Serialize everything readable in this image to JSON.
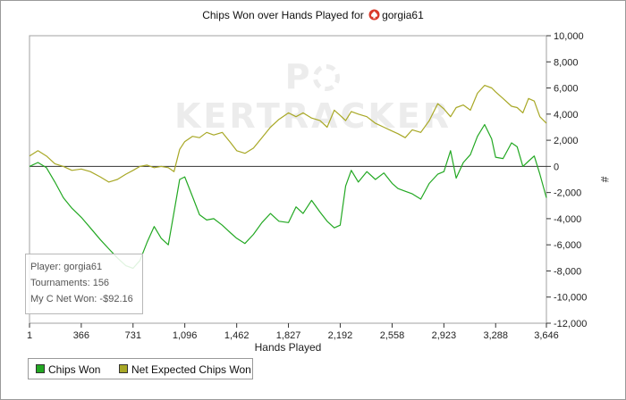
{
  "chart_data": {
    "type": "line",
    "title": "Chips Won over Hands Played for",
    "title_player": "gorgia61",
    "xlabel": "Hands Played",
    "ylabel": "#",
    "xlim": [
      1,
      3646
    ],
    "ylim": [
      -12000,
      10000
    ],
    "x_ticks": [
      1,
      366,
      731,
      1096,
      1462,
      1827,
      2192,
      2558,
      2923,
      3288,
      3646
    ],
    "y_ticks": [
      10000,
      8000,
      6000,
      4000,
      2000,
      0,
      -2000,
      -4000,
      -6000,
      -8000,
      -10000,
      -12000
    ],
    "x_tick_labels": [
      "1",
      "366",
      "731",
      "1,096",
      "1,462",
      "1,827",
      "2,192",
      "2,558",
      "2,923",
      "3,288",
      "3,646"
    ],
    "y_tick_labels": [
      "10,000",
      "8,000",
      "6,000",
      "4,000",
      "2,000",
      "0",
      "-2,000",
      "-4,000",
      "-6,000",
      "-8,000",
      "-10,000",
      "-12,000"
    ],
    "grid": false,
    "legend_position": "bottom-left",
    "series": [
      {
        "name": "Chips Won",
        "color": "#22a822",
        "points": [
          [
            1,
            0
          ],
          [
            60,
            300
          ],
          [
            120,
            -100
          ],
          [
            180,
            -1200
          ],
          [
            240,
            -2400
          ],
          [
            300,
            -3200
          ],
          [
            366,
            -3900
          ],
          [
            430,
            -4700
          ],
          [
            500,
            -5600
          ],
          [
            560,
            -6300
          ],
          [
            620,
            -7000
          ],
          [
            680,
            -7600
          ],
          [
            731,
            -7800
          ],
          [
            780,
            -7200
          ],
          [
            830,
            -5800
          ],
          [
            880,
            -4600
          ],
          [
            930,
            -5500
          ],
          [
            980,
            -6000
          ],
          [
            1020,
            -3500
          ],
          [
            1060,
            -1000
          ],
          [
            1096,
            -800
          ],
          [
            1150,
            -2300
          ],
          [
            1200,
            -3700
          ],
          [
            1250,
            -4100
          ],
          [
            1300,
            -4000
          ],
          [
            1360,
            -4500
          ],
          [
            1420,
            -5100
          ],
          [
            1462,
            -5500
          ],
          [
            1520,
            -5900
          ],
          [
            1580,
            -5200
          ],
          [
            1640,
            -4300
          ],
          [
            1700,
            -3600
          ],
          [
            1760,
            -4200
          ],
          [
            1827,
            -4300
          ],
          [
            1880,
            -3100
          ],
          [
            1930,
            -3600
          ],
          [
            1990,
            -2600
          ],
          [
            2050,
            -3500
          ],
          [
            2100,
            -4200
          ],
          [
            2150,
            -4700
          ],
          [
            2192,
            -4500
          ],
          [
            2230,
            -1500
          ],
          [
            2270,
            -300
          ],
          [
            2320,
            -1200
          ],
          [
            2380,
            -400
          ],
          [
            2440,
            -1000
          ],
          [
            2500,
            -500
          ],
          [
            2558,
            -1300
          ],
          [
            2600,
            -1700
          ],
          [
            2650,
            -1900
          ],
          [
            2700,
            -2100
          ],
          [
            2760,
            -2500
          ],
          [
            2820,
            -1300
          ],
          [
            2880,
            -600
          ],
          [
            2923,
            -400
          ],
          [
            2970,
            1200
          ],
          [
            3010,
            -900
          ],
          [
            3060,
            300
          ],
          [
            3110,
            900
          ],
          [
            3160,
            2300
          ],
          [
            3210,
            3200
          ],
          [
            3260,
            2100
          ],
          [
            3288,
            700
          ],
          [
            3340,
            600
          ],
          [
            3400,
            1800
          ],
          [
            3440,
            1500
          ],
          [
            3480,
            0
          ],
          [
            3520,
            400
          ],
          [
            3560,
            800
          ],
          [
            3600,
            -600
          ],
          [
            3646,
            -2400
          ]
        ]
      },
      {
        "name": "Net Expected Chips Won",
        "color": "#a8a826",
        "points": [
          [
            1,
            800
          ],
          [
            60,
            1200
          ],
          [
            120,
            800
          ],
          [
            180,
            200
          ],
          [
            240,
            0
          ],
          [
            300,
            -300
          ],
          [
            366,
            -200
          ],
          [
            430,
            -400
          ],
          [
            500,
            -800
          ],
          [
            560,
            -1200
          ],
          [
            620,
            -1000
          ],
          [
            680,
            -600
          ],
          [
            731,
            -300
          ],
          [
            780,
            0
          ],
          [
            830,
            100
          ],
          [
            880,
            -100
          ],
          [
            930,
            0
          ],
          [
            980,
            -100
          ],
          [
            1020,
            -400
          ],
          [
            1060,
            1300
          ],
          [
            1096,
            1900
          ],
          [
            1150,
            2300
          ],
          [
            1200,
            2200
          ],
          [
            1250,
            2600
          ],
          [
            1300,
            2400
          ],
          [
            1360,
            2600
          ],
          [
            1420,
            1800
          ],
          [
            1462,
            1200
          ],
          [
            1520,
            1000
          ],
          [
            1580,
            1400
          ],
          [
            1640,
            2200
          ],
          [
            1700,
            3000
          ],
          [
            1760,
            3600
          ],
          [
            1827,
            4100
          ],
          [
            1880,
            3800
          ],
          [
            1930,
            4100
          ],
          [
            1990,
            3700
          ],
          [
            2050,
            3500
          ],
          [
            2100,
            3000
          ],
          [
            2150,
            4300
          ],
          [
            2192,
            3900
          ],
          [
            2230,
            3500
          ],
          [
            2270,
            4200
          ],
          [
            2320,
            4000
          ],
          [
            2380,
            3800
          ],
          [
            2440,
            3300
          ],
          [
            2500,
            3000
          ],
          [
            2558,
            2700
          ],
          [
            2600,
            2500
          ],
          [
            2650,
            2200
          ],
          [
            2700,
            2800
          ],
          [
            2760,
            2600
          ],
          [
            2820,
            3500
          ],
          [
            2880,
            4800
          ],
          [
            2923,
            4400
          ],
          [
            2970,
            3800
          ],
          [
            3010,
            4500
          ],
          [
            3060,
            4700
          ],
          [
            3110,
            4300
          ],
          [
            3160,
            5600
          ],
          [
            3210,
            6200
          ],
          [
            3260,
            6000
          ],
          [
            3288,
            5700
          ],
          [
            3340,
            5200
          ],
          [
            3400,
            4600
          ],
          [
            3440,
            4500
          ],
          [
            3480,
            4100
          ],
          [
            3520,
            5200
          ],
          [
            3560,
            5000
          ],
          [
            3600,
            3800
          ],
          [
            3646,
            3300
          ]
        ]
      }
    ]
  },
  "watermark": {
    "text_left": "P",
    "text_right": "KERTRACKER"
  },
  "info_box": {
    "player": "Player: gorgia61",
    "tournaments": "Tournaments: 156",
    "net_won": "My C Net Won: -$92.16"
  },
  "icons": {
    "title_icon": "poker-spade-icon"
  }
}
